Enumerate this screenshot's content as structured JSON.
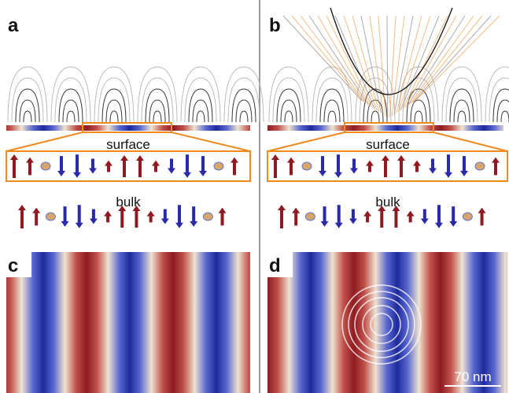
{
  "panels": {
    "a": {
      "label": "a",
      "surface": "surface",
      "bulk": "bulk"
    },
    "b": {
      "label": "b",
      "surface": "surface",
      "bulk": "bulk"
    },
    "c": {
      "label": "c"
    },
    "d": {
      "label": "d",
      "scale_bar": "70 nm"
    }
  }
}
